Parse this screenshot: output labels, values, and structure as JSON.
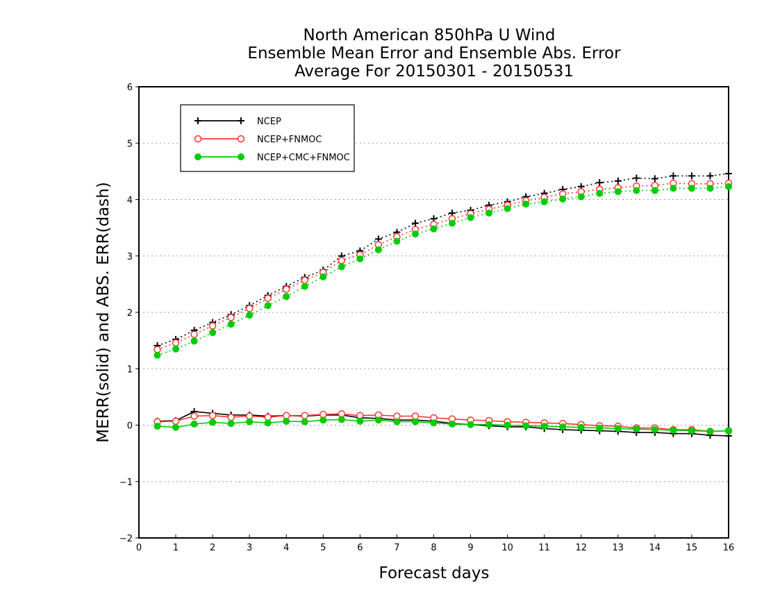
{
  "chart_data": {
    "type": "line",
    "title_lines": [
      "North American 850hPa U Wind",
      "Ensemble Mean Error and Ensemble Abs. Error",
      "Average For 20150301 - 20150531"
    ],
    "xlabel": "Forecast days",
    "ylabel": "MERR(solid) and ABS. ERR(dash)",
    "xlim": [
      0,
      16
    ],
    "ylim": [
      -2,
      6
    ],
    "xticks": [
      0,
      1,
      2,
      3,
      4,
      5,
      6,
      7,
      8,
      9,
      10,
      11,
      12,
      13,
      14,
      15,
      16
    ],
    "yticks": [
      -2,
      -1,
      0,
      1,
      2,
      3,
      4,
      5,
      6
    ],
    "grid": "horizontal dotted",
    "legend_position": "top-left",
    "x": [
      0.5,
      1,
      1.5,
      2,
      2.5,
      3,
      3.5,
      4,
      4.5,
      5,
      5.5,
      6,
      6.5,
      7,
      7.5,
      8,
      8.5,
      9,
      9.5,
      10,
      10.5,
      11,
      11.5,
      12,
      12.5,
      13,
      13.5,
      14,
      14.5,
      15,
      15.5,
      16
    ],
    "series": [
      {
        "name": "NCEP",
        "color": "#000000",
        "marker": "plus",
        "merr": [
          0.07,
          0.08,
          0.24,
          0.21,
          0.18,
          0.18,
          0.16,
          0.17,
          0.16,
          0.18,
          0.18,
          0.13,
          0.12,
          0.09,
          0.09,
          0.07,
          0.03,
          0.01,
          -0.01,
          -0.03,
          -0.03,
          -0.06,
          -0.08,
          -0.09,
          -0.1,
          -0.11,
          -0.13,
          -0.13,
          -0.15,
          -0.15,
          -0.18,
          -0.19
        ],
        "abs_err": [
          1.41,
          1.52,
          1.68,
          1.82,
          1.96,
          2.12,
          2.3,
          2.46,
          2.62,
          2.75,
          3.0,
          3.09,
          3.3,
          3.42,
          3.58,
          3.66,
          3.76,
          3.81,
          3.9,
          3.96,
          4.05,
          4.11,
          4.18,
          4.23,
          4.3,
          4.33,
          4.38,
          4.37,
          4.42,
          4.42,
          4.42,
          4.46
        ]
      },
      {
        "name": "NCEP+FNMOC",
        "color": "#ff3333",
        "marker": "open-circle",
        "merr": [
          0.06,
          0.07,
          0.16,
          0.17,
          0.14,
          0.16,
          0.14,
          0.17,
          0.17,
          0.19,
          0.2,
          0.17,
          0.18,
          0.16,
          0.16,
          0.13,
          0.11,
          0.09,
          0.08,
          0.06,
          0.05,
          0.04,
          0.03,
          0.01,
          -0.01,
          -0.02,
          -0.05,
          -0.05,
          -0.08,
          -0.08,
          -0.11,
          -0.1
        ],
        "abs_err": [
          1.34,
          1.46,
          1.61,
          1.76,
          1.91,
          2.07,
          2.25,
          2.41,
          2.57,
          2.71,
          2.92,
          3.02,
          3.2,
          3.34,
          3.47,
          3.56,
          3.66,
          3.75,
          3.83,
          3.9,
          3.98,
          4.04,
          4.1,
          4.14,
          4.18,
          4.21,
          4.24,
          4.25,
          4.29,
          4.28,
          4.28,
          4.29
        ]
      },
      {
        "name": "NCEP+CMC+FNMOC",
        "color": "#00cc00",
        "marker": "filled-circle",
        "merr": [
          -0.02,
          -0.04,
          0.02,
          0.05,
          0.03,
          0.06,
          0.04,
          0.07,
          0.06,
          0.09,
          0.1,
          0.07,
          0.09,
          0.06,
          0.06,
          0.04,
          0.02,
          0.01,
          0.01,
          0.0,
          -0.01,
          -0.02,
          -0.03,
          -0.04,
          -0.05,
          -0.06,
          -0.07,
          -0.08,
          -0.09,
          -0.1,
          -0.11,
          -0.1
        ],
        "abs_err": [
          1.24,
          1.35,
          1.49,
          1.64,
          1.79,
          1.95,
          2.12,
          2.28,
          2.46,
          2.63,
          2.81,
          2.95,
          3.11,
          3.26,
          3.39,
          3.48,
          3.58,
          3.68,
          3.76,
          3.84,
          3.92,
          3.96,
          4.01,
          4.05,
          4.11,
          4.14,
          4.16,
          4.16,
          4.2,
          4.2,
          4.2,
          4.23
        ]
      }
    ]
  }
}
